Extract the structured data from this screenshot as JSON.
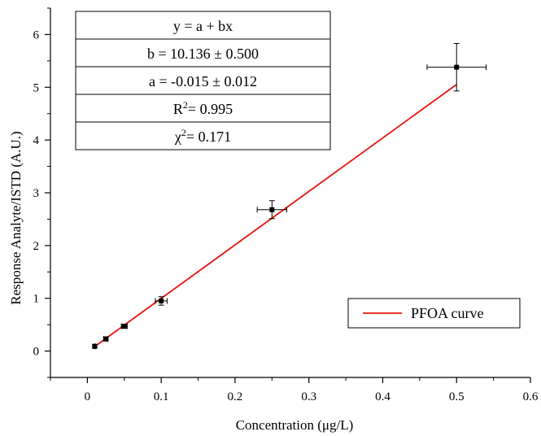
{
  "chart_data": {
    "type": "scatter",
    "xlabel": "Concentration (μg/L)",
    "ylabel": "Response Analyte/ISTD (A.U.)",
    "xlim": [
      -0.05,
      0.6
    ],
    "ylim": [
      -0.5,
      6.5
    ],
    "x_ticks": [
      0,
      0.1,
      0.2,
      0.3,
      0.4,
      0.5,
      0.6
    ],
    "x_tick_labels": [
      "0",
      "0.1",
      "0.2",
      "0.3",
      "0.4",
      "0.5",
      "0.6"
    ],
    "y_ticks": [
      0,
      1,
      2,
      3,
      4,
      5,
      6
    ],
    "y_tick_labels": [
      "0",
      "1",
      "2",
      "3",
      "4",
      "5",
      "6"
    ],
    "grid": false,
    "series": [
      {
        "name": "",
        "kind": "points",
        "color": "#000000",
        "x": [
          0.01,
          0.025,
          0.05,
          0.1,
          0.25,
          0.5
        ],
        "y": [
          0.09,
          0.23,
          0.47,
          0.95,
          2.68,
          5.38
        ],
        "x_err": [
          0.001,
          0.003,
          0.004,
          0.008,
          0.02,
          0.04
        ],
        "y_err": [
          0.03,
          0.04,
          0.04,
          0.08,
          0.17,
          0.45
        ]
      },
      {
        "name": "PFOA curve",
        "kind": "fit-line",
        "color": "#e8120c",
        "intercept": -0.015,
        "slope": 10.136,
        "x_range": [
          0.01,
          0.5
        ]
      }
    ],
    "fit_table": {
      "rows": [
        {
          "parts": [
            {
              "t": "y = a + bx"
            }
          ]
        },
        {
          "parts": [
            {
              "t": "b = 10.136 ± 0.500"
            }
          ]
        },
        {
          "parts": [
            {
              "t": "a = -0.015 ± 0.012"
            }
          ]
        },
        {
          "parts": [
            {
              "t": "R"
            },
            {
              "t": "2",
              "sup": true
            },
            {
              "t": "= 0.995"
            }
          ]
        },
        {
          "parts": [
            {
              "t": "χ"
            },
            {
              "t": "2",
              "sup": true
            },
            {
              "t": "= 0.171"
            }
          ]
        }
      ]
    },
    "legend": {
      "position": "bottom-right",
      "entries": [
        "PFOA curve"
      ]
    }
  }
}
